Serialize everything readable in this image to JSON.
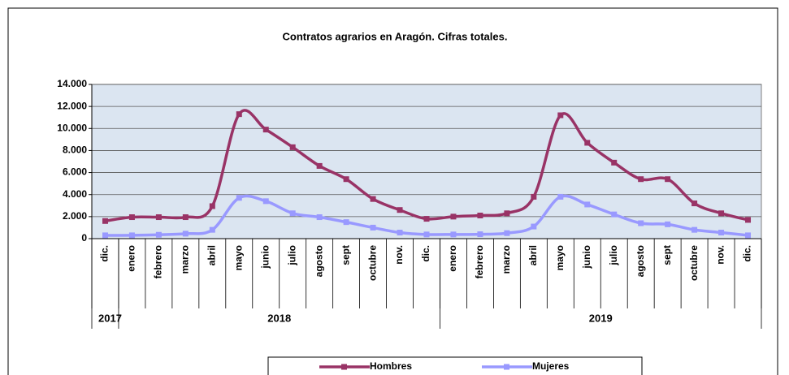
{
  "chart_data": {
    "type": "line",
    "title": "Contratos agrarios en Aragón. Cifras totales.",
    "categories": [
      "dic.",
      "enero",
      "febrero",
      "marzo",
      "abril",
      "mayo",
      "junio",
      "julio",
      "agosto",
      "sept",
      "octubre",
      "nov.",
      "dic.",
      "enero",
      "febrero",
      "marzo",
      "abril",
      "mayo",
      "junio",
      "julio",
      "agosto",
      "sept",
      "octubre",
      "nov.",
      "dic."
    ],
    "groups": [
      {
        "label": "2017",
        "count": 1
      },
      {
        "label": "2018",
        "count": 12
      },
      {
        "label": "2019",
        "count": 12
      }
    ],
    "series": [
      {
        "name": "Hombres",
        "color": "#993366",
        "values": [
          1600,
          1950,
          1950,
          1950,
          2950,
          11300,
          9900,
          8300,
          6600,
          5400,
          3600,
          2600,
          1800,
          2000,
          2100,
          2300,
          3800,
          11200,
          8700,
          6900,
          5400,
          5400,
          3200,
          2300,
          1700
        ]
      },
      {
        "name": "Mujeres",
        "color": "#9999ff",
        "values": [
          300,
          300,
          350,
          450,
          800,
          3700,
          3400,
          2300,
          1950,
          1500,
          1000,
          550,
          380,
          380,
          400,
          500,
          1100,
          3800,
          3100,
          2200,
          1400,
          1300,
          800,
          550,
          300
        ]
      }
    ],
    "ylim": [
      0,
      14000
    ],
    "yticks": [
      0,
      {
        "value": 2000,
        "label": "2.000"
      },
      {
        "value": 4000,
        "label": "4.000"
      },
      {
        "value": 6000,
        "label": "6.000"
      },
      {
        "value": 8000,
        "label": "8.000"
      },
      {
        "value": 10000,
        "label": "10.000"
      },
      {
        "value": 12000,
        "label": "12.000"
      },
      {
        "value": 14000,
        "label": "14.000"
      }
    ],
    "grid": true,
    "smooth": true,
    "legend": "bottom"
  }
}
